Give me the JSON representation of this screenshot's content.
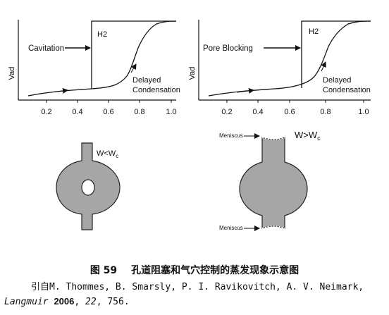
{
  "figure": {
    "left_panel": {
      "ylabel": "Vad",
      "xticks": [
        "0.2",
        "0.4",
        "0.6",
        "0.8",
        "1.0"
      ],
      "annotation_main": "Cavitation",
      "annotation_h2": "H2",
      "annotation_delayed_1": "Delayed",
      "annotation_delayed_2": "Condensation",
      "pore_label_w": "W<W",
      "pore_label_sub": "c"
    },
    "right_panel": {
      "ylabel": "Vad",
      "xticks": [
        "0.2",
        "0.4",
        "0.6",
        "0.8",
        "1.0"
      ],
      "annotation_main": "Pore Blocking",
      "annotation_h2": "H2",
      "annotation_delayed_1": "Delayed",
      "annotation_delayed_2": "Condensation",
      "pore_label_w": "W>W",
      "pore_label_sub": "c",
      "meniscus_top": "Meniscus",
      "meniscus_bottom": "Meniscus"
    }
  },
  "caption": {
    "figure_number": "图 59",
    "title": "孔道阻塞和气穴控制的蒸发现象示意图"
  },
  "reference": {
    "prefix": "引自",
    "authors": "M. Thommes, B. Smarsly, P. I. Ravikovitch, A. V. Neimark,",
    "journal": "Langmuir",
    "year": "2006",
    "volume": "22",
    "pages": ", 756."
  }
}
